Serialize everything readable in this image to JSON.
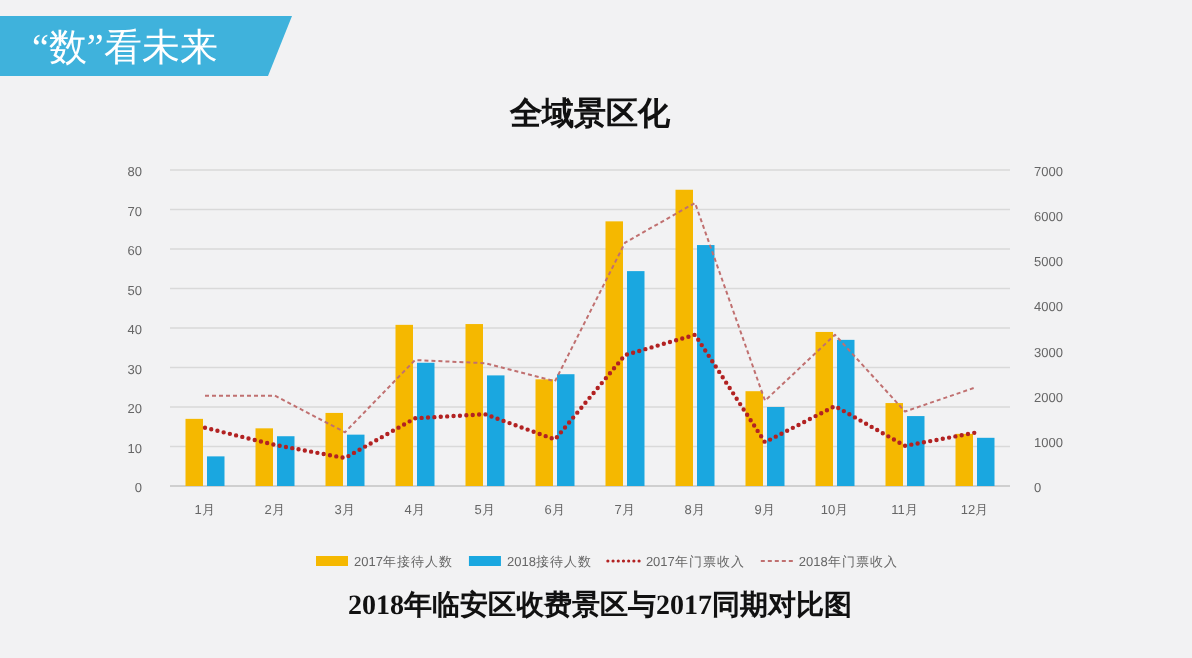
{
  "chart_data": {
    "type": "bar",
    "title": "全域景区化",
    "subtitle": "2018年临安区收费景区与2017同期对比图",
    "annotations": [
      "“数”看未来"
    ],
    "categories": [
      "1月",
      "2月",
      "3月",
      "4月",
      "5月",
      "6月",
      "7月",
      "8月",
      "9月",
      "10月",
      "11月",
      "12月"
    ],
    "series": [
      {
        "name": "2017年接待人数",
        "color": "#f5b800",
        "values": [
          17,
          14.6,
          18.5,
          40.8,
          41,
          27,
          67,
          75,
          24,
          39,
          21,
          13.2
        ]
      },
      {
        "name": "2018接待人数",
        "color": "#1aa7e0",
        "values": [
          7.5,
          12.6,
          13,
          31.2,
          28,
          28.3,
          54.4,
          61,
          20,
          37,
          17.7,
          12.2
        ]
      },
      {
        "name": "2017年门票收入",
        "type": "line",
        "axis": "y2",
        "line_style": "dotted",
        "color": "#b22222",
        "values": [
          1290,
          910,
          620,
          1500,
          1590,
          1030,
          2900,
          3350,
          970,
          1770,
          890,
          1180
        ]
      },
      {
        "name": "2018年门票收入",
        "type": "line",
        "axis": "y2",
        "line_style": "dashed",
        "color": "#c07070",
        "values": [
          2000,
          2000,
          1190,
          2790,
          2720,
          2320,
          5390,
          6270,
          1890,
          3350,
          1650,
          2180
        ]
      }
    ],
    "ylim": [
      0,
      80
    ],
    "yticks": [
      0,
      10,
      20,
      30,
      40,
      50,
      60,
      70,
      80
    ],
    "y2lim": [
      0,
      7000
    ],
    "y2ticks": [
      0,
      1000,
      2000,
      3000,
      4000,
      5000,
      6000,
      7000
    ],
    "grid": "y",
    "legend": "bottom",
    "marker": "none"
  }
}
